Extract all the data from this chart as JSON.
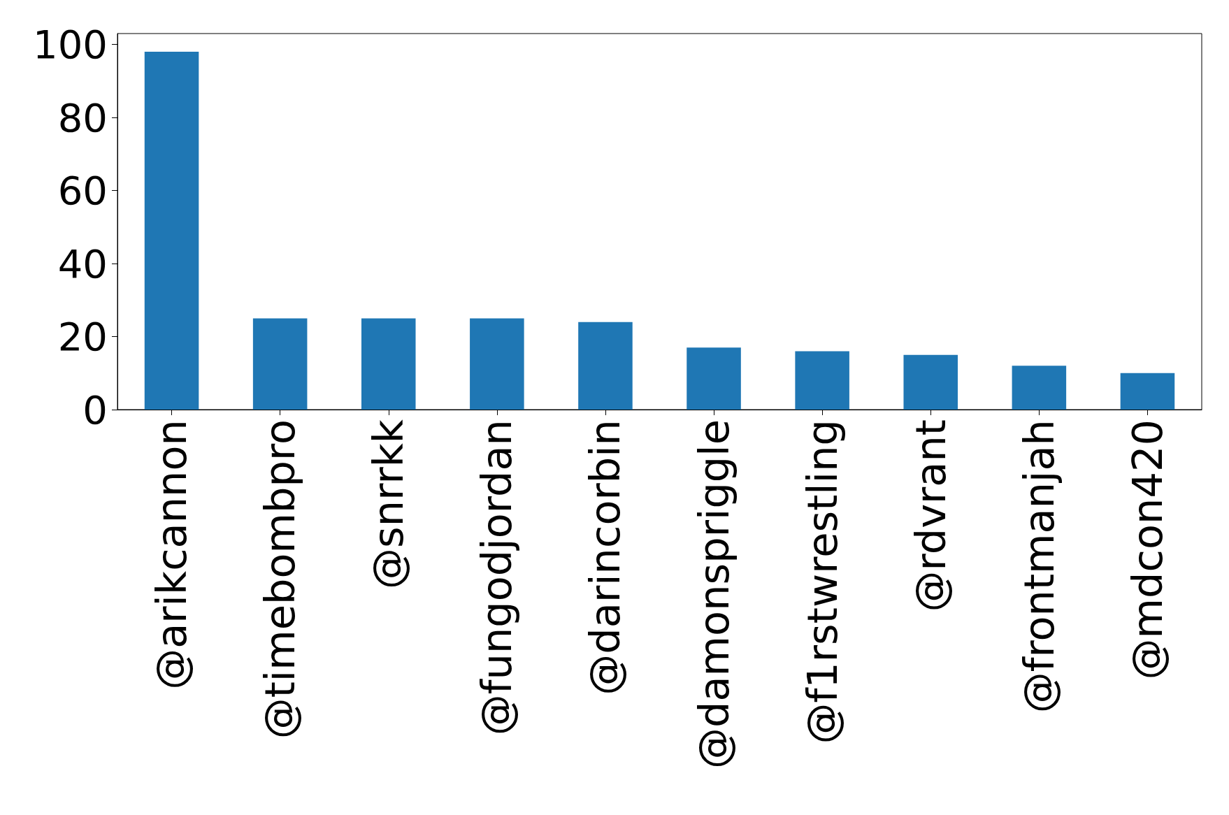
{
  "chart_data": {
    "type": "bar",
    "categories": [
      "@arikcannon",
      "@timebombpro",
      "@snrrkk",
      "@fungodjordan",
      "@darincorbin",
      "@damonspriggle",
      "@f1rstwrestling",
      "@rdvrant",
      "@frontmanjah",
      "@mdcon420"
    ],
    "values": [
      98,
      25,
      25,
      25,
      24,
      17,
      16,
      15,
      12,
      10
    ],
    "color": "#1f77b4",
    "ylim": [
      0,
      103
    ],
    "yticks": [
      0,
      20,
      40,
      60,
      80,
      100
    ],
    "grid": false
  }
}
